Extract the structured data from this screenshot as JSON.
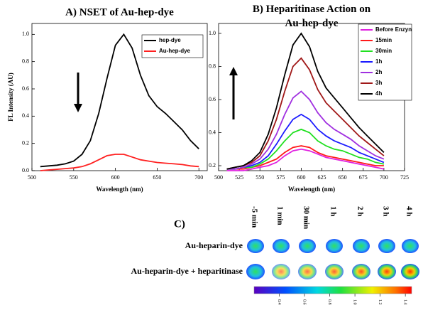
{
  "chart_data": [
    {
      "type": "line",
      "title": "A) NSET of Au-hep-dye",
      "x_label": "Wavelength (nm)",
      "y_label": "FL Intensity (AU)",
      "x": [
        510,
        520,
        530,
        540,
        550,
        560,
        570,
        580,
        590,
        600,
        610,
        620,
        630,
        640,
        650,
        660,
        670,
        680,
        690,
        700
      ],
      "series": [
        {
          "name": "hep-dye",
          "color": "#000000",
          "values": [
            0.03,
            0.035,
            0.04,
            0.05,
            0.07,
            0.12,
            0.22,
            0.42,
            0.68,
            0.92,
            1.0,
            0.9,
            0.7,
            0.55,
            0.47,
            0.42,
            0.36,
            0.3,
            0.22,
            0.16
          ]
        },
        {
          "name": "Au-hep-dye",
          "color": "#ff2020",
          "values": [
            0.0,
            0.005,
            0.01,
            0.015,
            0.02,
            0.03,
            0.05,
            0.08,
            0.11,
            0.12,
            0.12,
            0.1,
            0.08,
            0.07,
            0.06,
            0.055,
            0.05,
            0.045,
            0.035,
            0.03
          ]
        }
      ],
      "xlim": [
        500,
        710
      ],
      "xticks": [
        500,
        550,
        600,
        650,
        700
      ],
      "ylim": [
        0,
        1.08
      ],
      "yticks": [
        {
          "value": 0,
          "label": "0.0"
        },
        0.2,
        0.4,
        0.6,
        0.8,
        {
          "value": 1,
          "label": "1.0"
        }
      ],
      "legend": "upper right"
    },
    {
      "type": "line",
      "title": "B) Heparitinase Action on Au-hep-dye",
      "x_label": "Wavelength (nm)",
      "x": [
        510,
        520,
        530,
        540,
        550,
        560,
        570,
        580,
        590,
        600,
        610,
        620,
        630,
        640,
        650,
        660,
        670,
        680,
        690,
        700
      ],
      "series": [
        {
          "name": "Before Enzyn",
          "color": "#e020e0",
          "values": [
            0.17,
            0.17,
            0.17,
            0.18,
            0.19,
            0.2,
            0.22,
            0.26,
            0.29,
            0.3,
            0.29,
            0.27,
            0.25,
            0.24,
            0.23,
            0.22,
            0.21,
            0.2,
            0.19,
            0.18
          ]
        },
        {
          "name": "15min",
          "color": "#ff1a1a",
          "values": [
            0.18,
            0.18,
            0.18,
            0.19,
            0.2,
            0.22,
            0.24,
            0.28,
            0.31,
            0.32,
            0.31,
            0.28,
            0.26,
            0.25,
            0.24,
            0.23,
            0.22,
            0.21,
            0.2,
            0.2
          ]
        },
        {
          "name": "30min",
          "color": "#20e020",
          "values": [
            0.18,
            0.18,
            0.19,
            0.19,
            0.21,
            0.24,
            0.29,
            0.35,
            0.4,
            0.42,
            0.4,
            0.35,
            0.32,
            0.3,
            0.29,
            0.27,
            0.25,
            0.24,
            0.22,
            0.21
          ]
        },
        {
          "name": "1h",
          "color": "#1a1aff",
          "values": [
            0.18,
            0.18,
            0.19,
            0.2,
            0.22,
            0.26,
            0.33,
            0.41,
            0.48,
            0.51,
            0.48,
            0.42,
            0.38,
            0.35,
            0.33,
            0.31,
            0.28,
            0.26,
            0.24,
            0.22
          ]
        },
        {
          "name": "2h",
          "color": "#a030e0",
          "values": [
            0.18,
            0.18,
            0.19,
            0.21,
            0.24,
            0.3,
            0.39,
            0.51,
            0.61,
            0.65,
            0.6,
            0.52,
            0.46,
            0.42,
            0.39,
            0.36,
            0.32,
            0.29,
            0.26,
            0.24
          ]
        },
        {
          "name": "3h",
          "color": "#a01818",
          "values": [
            0.18,
            0.19,
            0.2,
            0.22,
            0.26,
            0.35,
            0.48,
            0.65,
            0.8,
            0.85,
            0.78,
            0.66,
            0.58,
            0.53,
            0.48,
            0.43,
            0.38,
            0.34,
            0.3,
            0.26
          ]
        },
        {
          "name": "4h",
          "color": "#000000",
          "values": [
            0.18,
            0.19,
            0.2,
            0.23,
            0.28,
            0.39,
            0.55,
            0.75,
            0.93,
            1.0,
            0.92,
            0.77,
            0.67,
            0.61,
            0.55,
            0.49,
            0.43,
            0.38,
            0.33,
            0.28
          ]
        }
      ],
      "xlim": [
        500,
        725
      ],
      "xticks": [
        500,
        525,
        550,
        575,
        600,
        625,
        650,
        675,
        700,
        725
      ],
      "ylim": [
        0.17,
        1.06
      ],
      "yticks": [
        0.2,
        0.4,
        0.6,
        0.8,
        {
          "value": 1,
          "label": "1.0"
        }
      ],
      "legend": "upper right"
    }
  ],
  "panel_c": {
    "title": "C)",
    "columns": [
      "-5 min",
      "1 min",
      "30 min",
      "1 h",
      "2 h",
      "3 h",
      "4 h"
    ],
    "rows": [
      "Au-heparin-dye",
      "Au-heparin-dye + heparitinase"
    ],
    "colorbar_lim": [
      0.2,
      1.45
    ],
    "colorbar_ticks": [
      0.4,
      0.6,
      0.8,
      {
        "value": 1,
        "label": "1.0"
      },
      1.2,
      1.4
    ]
  }
}
